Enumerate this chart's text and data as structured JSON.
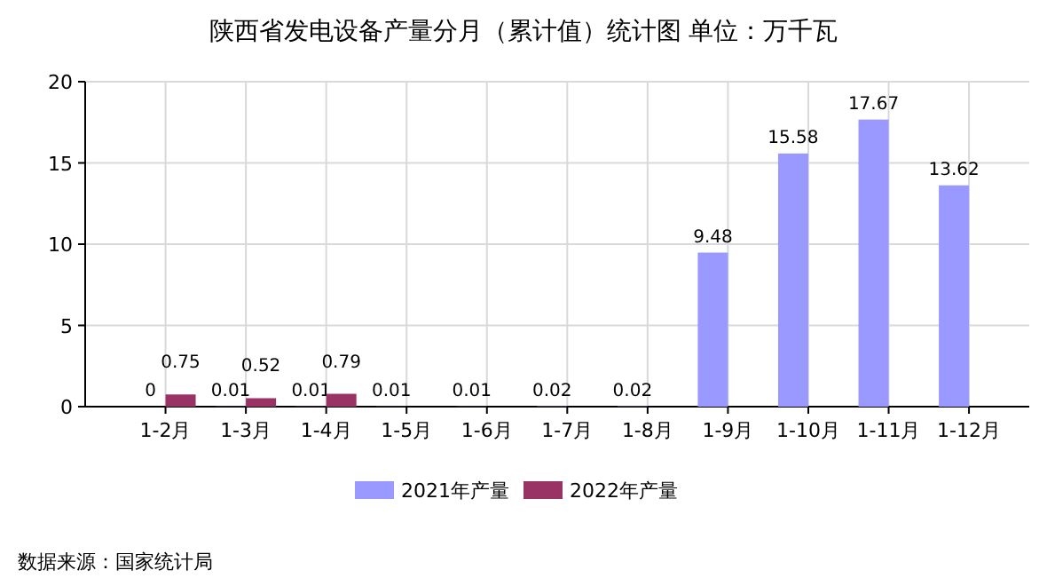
{
  "chart_data": {
    "type": "bar",
    "title": "陕西省发电设备产量分月（累计值）统计图 单位：万千瓦",
    "categories": [
      "1-2月",
      "1-3月",
      "1-4月",
      "1-5月",
      "1-6月",
      "1-7月",
      "1-8月",
      "1-9月",
      "1-10月",
      "1-11月",
      "1-12月"
    ],
    "series": [
      {
        "name": "2021年产量",
        "color": "#9999ff",
        "values": [
          0,
          0.01,
          0.01,
          0.01,
          0.01,
          0.02,
          0.02,
          9.48,
          15.58,
          17.67,
          13.62
        ]
      },
      {
        "name": "2022年产量",
        "color": "#993366",
        "values": [
          0.75,
          0.52,
          0.79,
          null,
          null,
          null,
          null,
          null,
          null,
          null,
          null
        ]
      }
    ],
    "ylim": [
      0,
      20
    ],
    "yticks": [
      0,
      5,
      10,
      15,
      20
    ],
    "grid": true,
    "legend": "bottom",
    "data_labels": true,
    "annotations": [
      "数据来源：国家统计局"
    ]
  }
}
